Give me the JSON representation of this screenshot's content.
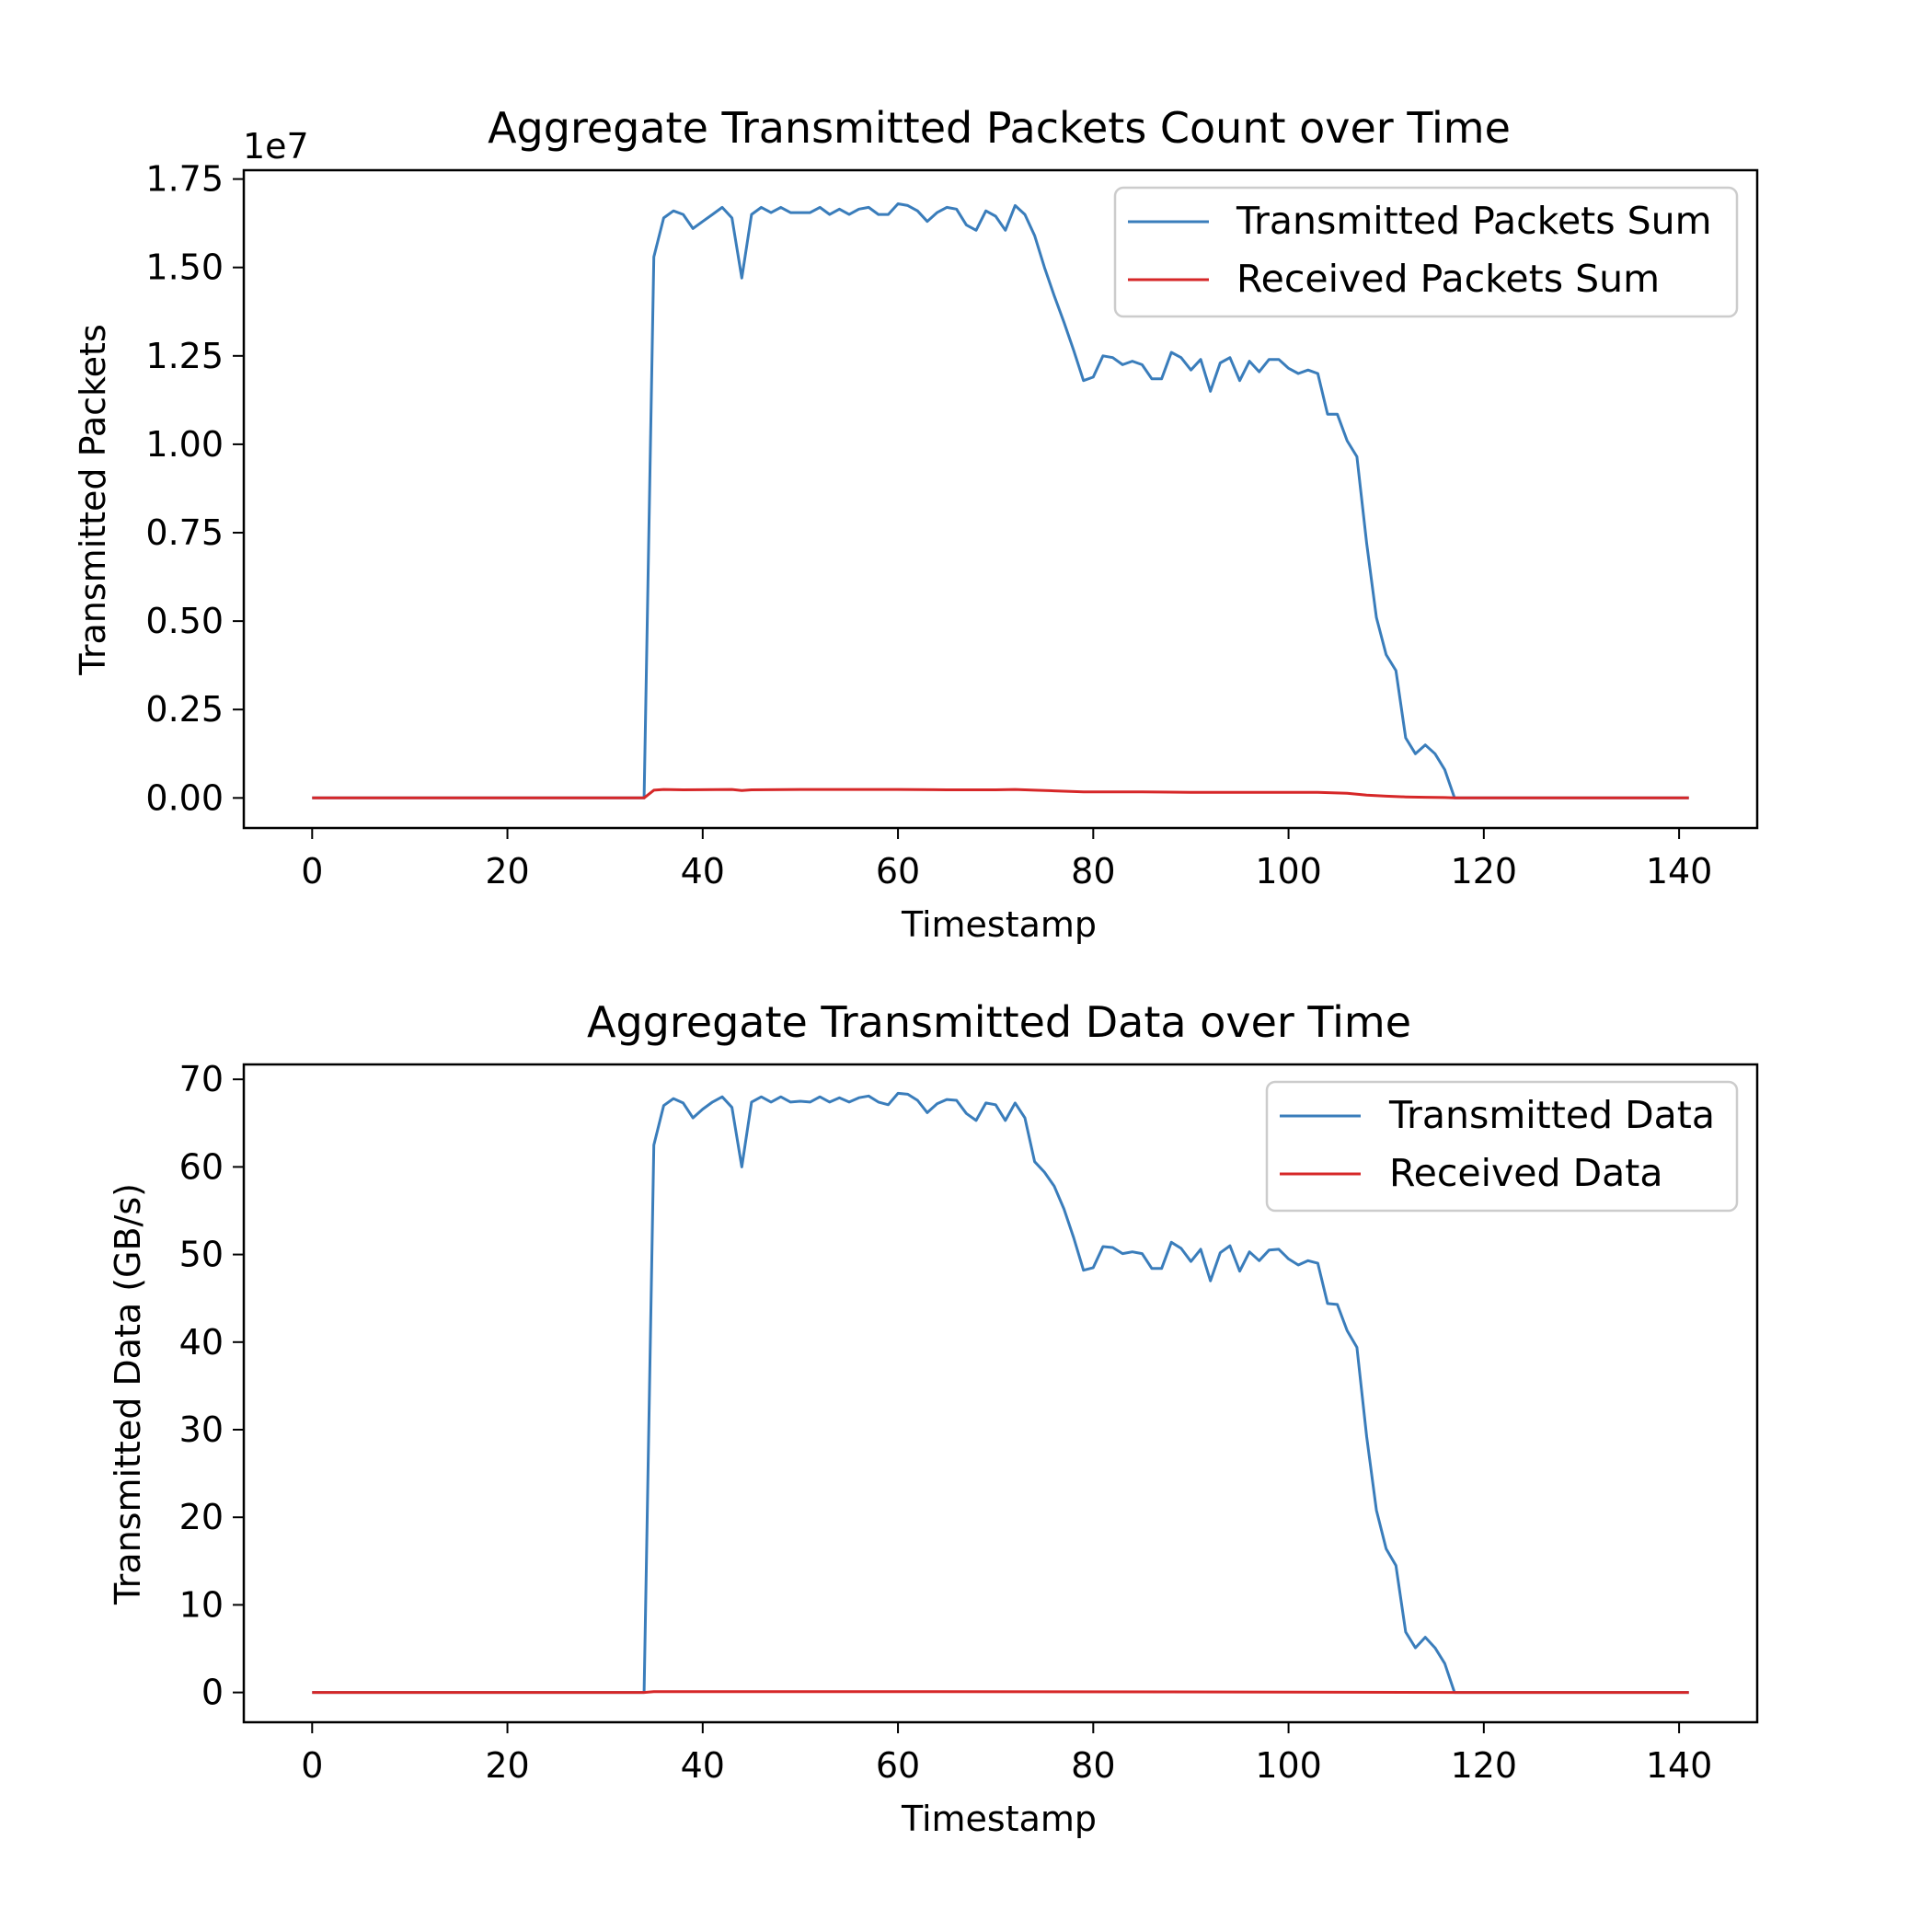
{
  "chart_data": [
    {
      "type": "line",
      "title": "Aggregate Transmitted Packets Count over Time",
      "xlabel": "Timestamp",
      "ylabel": "Transmitted Packets",
      "offset_label": "1e7",
      "y_multiplier": 10000000,
      "xlim": [
        -7,
        148
      ],
      "ylim": [
        -0.085,
        1.775
      ],
      "x_ticks": [
        0,
        20,
        40,
        60,
        80,
        100,
        120,
        140
      ],
      "x_tick_labels": [
        "0",
        "20",
        "40",
        "60",
        "80",
        "100",
        "120",
        "140"
      ],
      "y_ticks": [
        0,
        0.25,
        0.5,
        0.75,
        1.0,
        1.25,
        1.5,
        1.75
      ],
      "y_tick_labels": [
        "0.00",
        "0.25",
        "0.50",
        "0.75",
        "1.00",
        "1.25",
        "1.50",
        "1.75"
      ],
      "grid": false,
      "legend_position": "upper right",
      "series": [
        {
          "name": "Transmitted Packets Sum",
          "color": "#3a7dbb",
          "x": [
            0,
            34,
            35,
            36,
            37,
            38,
            39,
            40,
            41,
            42,
            43,
            44,
            45,
            46,
            47,
            48,
            49,
            50,
            51,
            52,
            53,
            54,
            55,
            56,
            57,
            58,
            59,
            60,
            61,
            62,
            63,
            64,
            65,
            66,
            67,
            68,
            69,
            70,
            71,
            72,
            73,
            74,
            75,
            76,
            77,
            78,
            79,
            80,
            81,
            82,
            83,
            84,
            85,
            86,
            87,
            88,
            89,
            90,
            91,
            92,
            93,
            94,
            95,
            96,
            97,
            98,
            99,
            100,
            101,
            102,
            103,
            104,
            105,
            106,
            107,
            108,
            109,
            110,
            111,
            112,
            113,
            114,
            115,
            116,
            117,
            141
          ],
          "y": [
            0,
            0,
            1.53,
            1.64,
            1.66,
            1.65,
            1.61,
            1.63,
            1.65,
            1.67,
            1.64,
            1.47,
            1.65,
            1.67,
            1.655,
            1.67,
            1.655,
            1.655,
            1.655,
            1.67,
            1.65,
            1.665,
            1.65,
            1.665,
            1.67,
            1.65,
            1.65,
            1.68,
            1.675,
            1.66,
            1.63,
            1.655,
            1.67,
            1.665,
            1.62,
            1.605,
            1.66,
            1.645,
            1.605,
            1.675,
            1.65,
            1.59,
            1.5,
            1.42,
            1.345,
            1.265,
            1.18,
            1.19,
            1.25,
            1.245,
            1.225,
            1.235,
            1.225,
            1.185,
            1.185,
            1.26,
            1.245,
            1.21,
            1.24,
            1.15,
            1.23,
            1.245,
            1.18,
            1.235,
            1.205,
            1.24,
            1.24,
            1.215,
            1.2,
            1.21,
            1.2,
            1.085,
            1.085,
            1.01,
            0.965,
            0.72,
            0.51,
            0.405,
            0.36,
            0.17,
            0.125,
            0.15,
            0.125,
            0.08,
            0.0,
            0.0
          ]
        },
        {
          "name": "Received Packets Sum",
          "color": "#d62728",
          "x": [
            0,
            34,
            35,
            36,
            38,
            43,
            44,
            45,
            50,
            55,
            60,
            65,
            70,
            72,
            74,
            76,
            78,
            79,
            85,
            90,
            95,
            100,
            103,
            106,
            108,
            110,
            112,
            114,
            116,
            117,
            141
          ],
          "y": [
            0,
            0,
            0.022,
            0.024,
            0.023,
            0.024,
            0.021,
            0.023,
            0.024,
            0.024,
            0.024,
            0.023,
            0.023,
            0.024,
            0.022,
            0.02,
            0.018,
            0.017,
            0.017,
            0.016,
            0.016,
            0.016,
            0.016,
            0.013,
            0.008,
            0.005,
            0.003,
            0.002,
            0.001,
            0.0,
            0.0
          ]
        }
      ]
    },
    {
      "type": "line",
      "title": "Aggregate Transmitted Data over Time",
      "xlabel": "Timestamp",
      "ylabel": "Transmitted Data (GB/s)",
      "xlim": [
        -7,
        148
      ],
      "ylim": [
        -3.4,
        71.7
      ],
      "x_ticks": [
        0,
        20,
        40,
        60,
        80,
        100,
        120,
        140
      ],
      "x_tick_labels": [
        "0",
        "20",
        "40",
        "60",
        "80",
        "100",
        "120",
        "140"
      ],
      "y_ticks": [
        0,
        10,
        20,
        30,
        40,
        50,
        60,
        70
      ],
      "y_tick_labels": [
        "0",
        "10",
        "20",
        "30",
        "40",
        "50",
        "60",
        "70"
      ],
      "grid": false,
      "legend_position": "upper right",
      "series": [
        {
          "name": "Transmitted Data",
          "color": "#3a7dbb",
          "x": [
            0,
            34,
            35,
            36,
            37,
            38,
            39,
            40,
            41,
            42,
            43,
            44,
            45,
            46,
            47,
            48,
            49,
            50,
            51,
            52,
            53,
            54,
            55,
            56,
            57,
            58,
            59,
            60,
            61,
            62,
            63,
            64,
            65,
            66,
            67,
            68,
            69,
            70,
            71,
            72,
            73,
            74,
            75,
            76,
            77,
            78,
            79,
            80,
            81,
            82,
            83,
            84,
            85,
            86,
            87,
            88,
            89,
            90,
            91,
            92,
            93,
            94,
            95,
            96,
            97,
            98,
            99,
            100,
            101,
            102,
            103,
            104,
            105,
            106,
            107,
            108,
            109,
            110,
            111,
            112,
            113,
            114,
            115,
            116,
            117,
            141
          ],
          "y": [
            0,
            0,
            62.5,
            67.0,
            67.8,
            67.3,
            65.6,
            66.6,
            67.4,
            68.0,
            66.8,
            60.0,
            67.4,
            68.0,
            67.4,
            68.0,
            67.4,
            67.5,
            67.4,
            68.0,
            67.4,
            67.9,
            67.4,
            67.9,
            68.1,
            67.4,
            67.1,
            68.4,
            68.3,
            67.6,
            66.2,
            67.2,
            67.7,
            67.6,
            66.1,
            65.3,
            67.3,
            67.1,
            65.3,
            67.3,
            65.6,
            60.6,
            59.4,
            57.8,
            55.2,
            51.9,
            48.2,
            48.5,
            50.9,
            50.8,
            50.1,
            50.3,
            50.1,
            48.4,
            48.4,
            51.4,
            50.7,
            49.2,
            50.6,
            47.0,
            50.2,
            51.0,
            48.1,
            50.3,
            49.3,
            50.5,
            50.6,
            49.5,
            48.8,
            49.3,
            49.0,
            44.4,
            44.3,
            41.3,
            39.4,
            29.2,
            20.8,
            16.4,
            14.5,
            6.9,
            5.1,
            6.3,
            5.1,
            3.3,
            0.0,
            0.0
          ]
        },
        {
          "name": "Received Data",
          "color": "#d62728",
          "x": [
            0,
            34,
            35,
            60,
            100,
            117,
            141
          ],
          "y": [
            0,
            0,
            0.1,
            0.1,
            0.05,
            0.0,
            0.0
          ]
        }
      ]
    }
  ]
}
